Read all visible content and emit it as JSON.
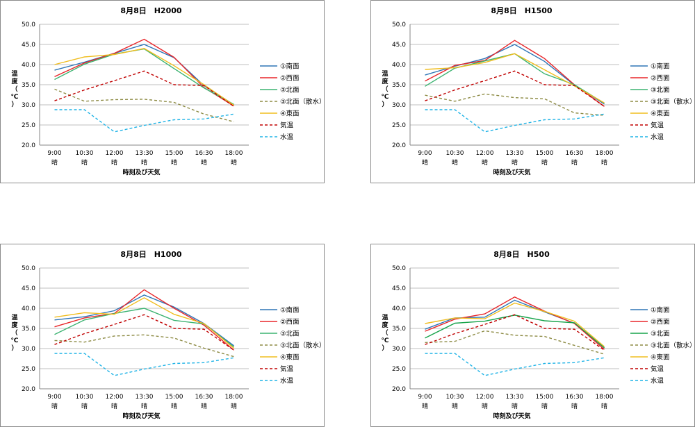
{
  "chart_data": [
    {
      "type": "line",
      "title": "8月8日　H2000",
      "xlabel": "時刻及び天気",
      "ylabel": "温度（℃）",
      "ylim": [
        20,
        50
      ],
      "yticks": [
        "50.0",
        "45.0",
        "40.0",
        "35.0",
        "30.0",
        "25.0",
        "20.0"
      ],
      "categories": [
        "9:00",
        "10:30",
        "12:00",
        "13:30",
        "15:00",
        "16:30",
        "18:00"
      ],
      "weather": [
        "晴",
        "晴",
        "晴",
        "晴",
        "晴",
        "晴",
        "晴"
      ],
      "series": [
        {
          "name": "①南面",
          "color": "#2e75b6",
          "dash": "solid",
          "values": [
            38.6,
            40.6,
            42.8,
            45.0,
            41.7,
            34.8,
            30.0
          ]
        },
        {
          "name": "②西面",
          "color": "#e8262a",
          "dash": "solid",
          "values": [
            37.0,
            40.4,
            42.8,
            46.3,
            41.8,
            34.3,
            29.7
          ]
        },
        {
          "name": "③北面",
          "color": "#3cb371",
          "dash": "solid",
          "values": [
            36.3,
            40.1,
            42.6,
            43.9,
            39.0,
            34.2,
            30.1
          ]
        },
        {
          "name": "③北面（散水）",
          "color": "#8d8b44",
          "dash": "dash",
          "values": [
            33.9,
            30.9,
            31.3,
            31.4,
            30.6,
            27.7,
            25.8
          ]
        },
        {
          "name": "④東面",
          "color": "#f0bd1e",
          "dash": "solid",
          "values": [
            40.0,
            41.9,
            42.5,
            44.0,
            39.7,
            35.0,
            29.9
          ]
        },
        {
          "name": "気温",
          "color": "#c00000",
          "dash": "dash",
          "values": [
            31.0,
            33.7,
            36.0,
            38.4,
            35.0,
            34.8,
            29.6
          ]
        },
        {
          "name": "水温",
          "color": "#1fb3e6",
          "dash": "dash",
          "values": [
            28.8,
            28.8,
            23.3,
            24.9,
            26.3,
            26.5,
            27.7
          ]
        }
      ]
    },
    {
      "type": "line",
      "title": "8月8日　H1500",
      "xlabel": "時刻及び天気",
      "ylabel": "温度（℃）",
      "ylim": [
        20,
        50
      ],
      "yticks": [
        "50.0",
        "45.0",
        "40.0",
        "35.0",
        "30.0",
        "25.0",
        "20.0"
      ],
      "categories": [
        "9:00",
        "10:30",
        "12:00",
        "13:30",
        "15:00",
        "16:30",
        "18:00"
      ],
      "weather": [
        "晴",
        "晴",
        "晴",
        "晴",
        "晴",
        "晴",
        "晴"
      ],
      "series": [
        {
          "name": "①南面",
          "color": "#2e75b6",
          "dash": "solid",
          "values": [
            37.4,
            39.6,
            41.5,
            45.0,
            40.8,
            34.9,
            30.2
          ]
        },
        {
          "name": "②西面",
          "color": "#e8262a",
          "dash": "solid",
          "values": [
            35.9,
            39.8,
            41.0,
            46.0,
            41.5,
            35.0,
            29.6
          ]
        },
        {
          "name": "③北面",
          "color": "#3cb371",
          "dash": "solid",
          "values": [
            34.6,
            39.1,
            40.9,
            42.7,
            37.7,
            35.0,
            30.4
          ]
        },
        {
          "name": "③北面（散水）",
          "color": "#8d8b44",
          "dash": "dash",
          "values": [
            32.4,
            30.9,
            32.7,
            31.8,
            31.5,
            28.0,
            27.4
          ]
        },
        {
          "name": "④東面",
          "color": "#f0bd1e",
          "dash": "solid",
          "values": [
            38.8,
            39.2,
            40.5,
            42.7,
            38.7,
            34.7,
            30.5
          ]
        },
        {
          "name": "気温",
          "color": "#c00000",
          "dash": "dash",
          "values": [
            31.0,
            33.7,
            36.0,
            38.4,
            35.0,
            34.8,
            29.6
          ]
        },
        {
          "name": "水温",
          "color": "#1fb3e6",
          "dash": "dash",
          "values": [
            28.8,
            28.8,
            23.3,
            24.9,
            26.3,
            26.5,
            27.7
          ]
        }
      ]
    },
    {
      "type": "line",
      "title": "8月8日　H1000",
      "xlabel": "時刻及び天気",
      "ylabel": "温度（℃）",
      "ylim": [
        20,
        50
      ],
      "yticks": [
        "50.0",
        "45.0",
        "40.0",
        "35.0",
        "30.0",
        "25.0",
        "20.0"
      ],
      "categories": [
        "9:00",
        "10:30",
        "12:00",
        "13:30",
        "15:00",
        "16:30",
        "18:00"
      ],
      "weather": [
        "晴",
        "晴",
        "晴",
        "晴",
        "晴",
        "晴",
        "晴"
      ],
      "series": [
        {
          "name": "①南面",
          "color": "#2e75b6",
          "dash": "solid",
          "values": [
            37.1,
            37.9,
            39.4,
            43.3,
            40.3,
            36.2,
            30.7
          ]
        },
        {
          "name": "②西面",
          "color": "#e8262a",
          "dash": "solid",
          "values": [
            35.4,
            37.6,
            38.7,
            44.6,
            40.0,
            35.8,
            29.6
          ]
        },
        {
          "name": "③北面",
          "color": "#3cb371",
          "dash": "solid",
          "values": [
            33.5,
            37.1,
            38.7,
            40.0,
            37.0,
            36.1,
            30.4
          ]
        },
        {
          "name": "③北面（散水）",
          "color": "#8d8b44",
          "dash": "dash",
          "values": [
            32.0,
            31.6,
            33.1,
            33.4,
            32.6,
            30.1,
            28.0
          ]
        },
        {
          "name": "④東面",
          "color": "#f0bd1e",
          "dash": "solid",
          "values": [
            37.8,
            38.9,
            38.5,
            42.6,
            38.5,
            36.2,
            30.1
          ]
        },
        {
          "name": "気温",
          "color": "#c00000",
          "dash": "dash",
          "values": [
            31.0,
            33.7,
            36.0,
            38.4,
            35.0,
            34.8,
            29.6
          ]
        },
        {
          "name": "水温",
          "color": "#1fb3e6",
          "dash": "dash",
          "values": [
            28.8,
            28.8,
            23.3,
            24.9,
            26.3,
            26.5,
            27.7
          ]
        }
      ]
    },
    {
      "type": "line",
      "title": "8月8日　H500",
      "xlabel": "時刻及び天気",
      "ylabel": "温度（℃）",
      "ylim": [
        20,
        50
      ],
      "yticks": [
        "50.0",
        "45.0",
        "40.0",
        "35.0",
        "30.0",
        "25.0",
        "20.0"
      ],
      "categories": [
        "9:00",
        "10:30",
        "12:00",
        "13:30",
        "15:00",
        "16:30",
        "18:00"
      ],
      "weather": [
        "晴",
        "晴",
        "晴",
        "晴",
        "晴",
        "晴",
        "晴"
      ],
      "series": [
        {
          "name": "①南面",
          "color": "#2e75b6",
          "dash": "solid",
          "values": [
            34.8,
            37.6,
            37.8,
            42.0,
            39.1,
            36.3,
            30.2
          ]
        },
        {
          "name": "②西面",
          "color": "#e8262a",
          "dash": "solid",
          "values": [
            34.3,
            37.3,
            38.6,
            42.8,
            39.3,
            36.2,
            29.8
          ]
        },
        {
          "name": "③北面",
          "color": "#16a34a",
          "dash": "solid",
          "values": [
            32.6,
            36.3,
            36.8,
            38.3,
            36.9,
            36.4,
            30.2
          ]
        },
        {
          "name": "③北面（散水）",
          "color": "#8d8b44",
          "dash": "dash",
          "values": [
            31.5,
            31.8,
            34.4,
            33.3,
            33.0,
            30.8,
            28.6
          ]
        },
        {
          "name": "④東面",
          "color": "#f0bd1e",
          "dash": "solid",
          "values": [
            36.2,
            37.6,
            37.4,
            41.3,
            39.2,
            36.8,
            30.5
          ]
        },
        {
          "name": "気温",
          "color": "#c00000",
          "dash": "dash",
          "values": [
            31.0,
            33.7,
            36.0,
            38.4,
            35.0,
            34.8,
            29.6
          ]
        },
        {
          "name": "水温",
          "color": "#1fb3e6",
          "dash": "dash",
          "values": [
            28.8,
            28.8,
            23.3,
            24.9,
            26.3,
            26.5,
            27.7
          ]
        }
      ]
    }
  ]
}
